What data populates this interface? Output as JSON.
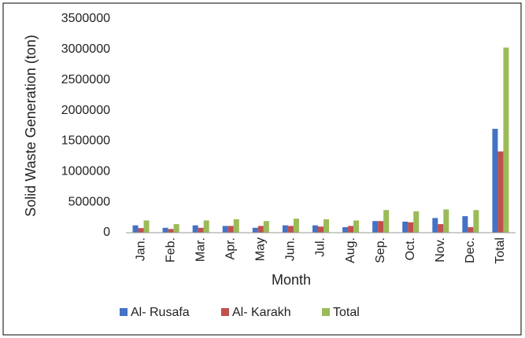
{
  "chart_data": {
    "type": "bar",
    "y_label": "Solid Waste Generation (ton)",
    "x_label": "Month",
    "categories": [
      "Jan.",
      "Feb.",
      "Mar.",
      "Apr.",
      "May",
      "Jun.",
      "Jul.",
      "Aug.",
      "Sep.",
      "Oct.",
      "Nov.",
      "Dec.",
      "Total"
    ],
    "series": [
      {
        "name": "Al- Rusafa",
        "color": "#4472c4",
        "values": [
          120000,
          80000,
          120000,
          110000,
          80000,
          120000,
          120000,
          90000,
          190000,
          180000,
          240000,
          270000,
          1700000
        ]
      },
      {
        "name": "Al- Karakh",
        "color": "#c0504d",
        "values": [
          75000,
          60000,
          80000,
          110000,
          110000,
          110000,
          100000,
          110000,
          190000,
          170000,
          140000,
          90000,
          1330000
        ]
      },
      {
        "name": "Total",
        "color": "#9bbb59",
        "values": [
          200000,
          140000,
          200000,
          220000,
          190000,
          230000,
          220000,
          200000,
          370000,
          350000,
          380000,
          370000,
          3030000
        ]
      }
    ],
    "ylim": [
      0,
      3500000
    ],
    "yticks": [
      0,
      500000,
      1000000,
      1500000,
      2000000,
      2500000,
      3000000,
      3500000
    ],
    "grid": false,
    "legend": "bottom"
  }
}
